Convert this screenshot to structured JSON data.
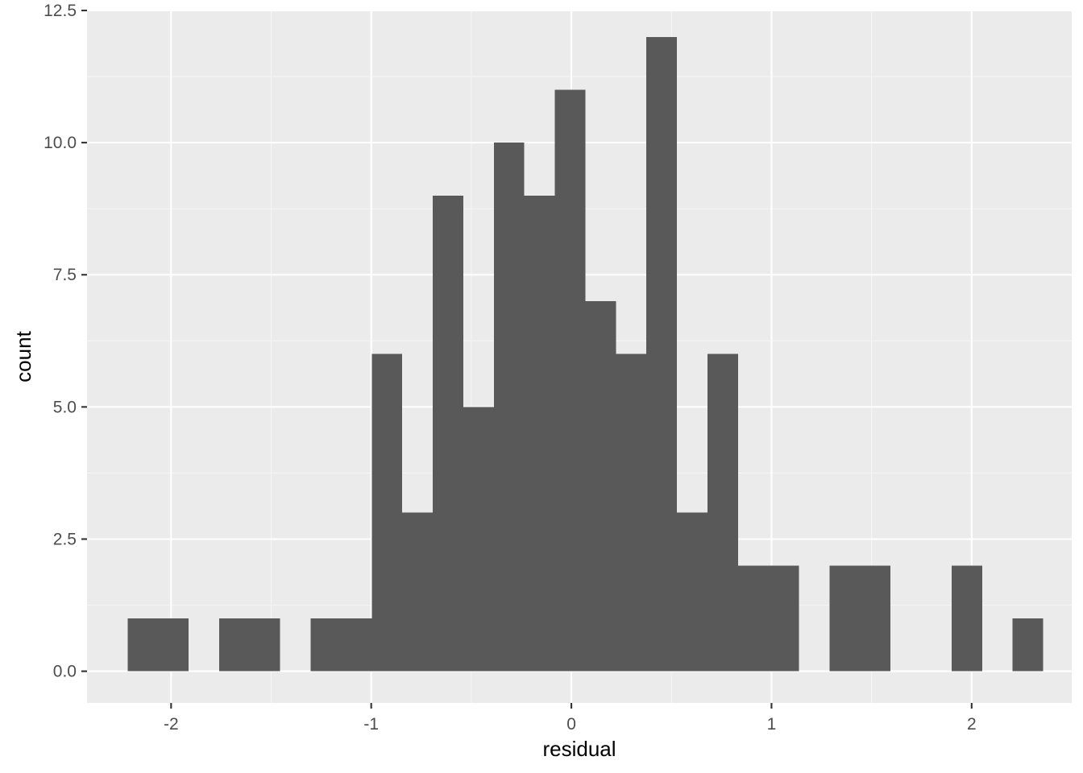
{
  "chart_data": {
    "type": "bar",
    "title": "",
    "xlabel": "residual",
    "ylabel": "count",
    "xlim": [
      -2.42,
      2.5
    ],
    "ylim": [
      -0.6,
      12.5
    ],
    "x_ticks": [
      {
        "value": -2,
        "label": "-2"
      },
      {
        "value": -1,
        "label": "-1"
      },
      {
        "value": 0,
        "label": "0"
      },
      {
        "value": 1,
        "label": "1"
      },
      {
        "value": 2,
        "label": "2"
      }
    ],
    "y_ticks": [
      {
        "value": 0,
        "label": "0.0"
      },
      {
        "value": 2.5,
        "label": "2.5"
      },
      {
        "value": 5,
        "label": "5.0"
      },
      {
        "value": 7.5,
        "label": "7.5"
      },
      {
        "value": 10,
        "label": "10.0"
      },
      {
        "value": 12.5,
        "label": "12.5"
      }
    ],
    "bin_width": 0.1525,
    "bins": [
      {
        "x_start": -2.2175,
        "x_end": -2.065,
        "count": 1
      },
      {
        "x_start": -2.065,
        "x_end": -1.9125,
        "count": 1
      },
      {
        "x_start": -1.9125,
        "x_end": -1.76,
        "count": 0
      },
      {
        "x_start": -1.76,
        "x_end": -1.6075,
        "count": 1
      },
      {
        "x_start": -1.6075,
        "x_end": -1.455,
        "count": 1
      },
      {
        "x_start": -1.455,
        "x_end": -1.3025,
        "count": 0
      },
      {
        "x_start": -1.3025,
        "x_end": -1.15,
        "count": 1
      },
      {
        "x_start": -1.15,
        "x_end": -0.9975,
        "count": 1
      },
      {
        "x_start": -0.9975,
        "x_end": -0.845,
        "count": 6
      },
      {
        "x_start": -0.845,
        "x_end": -0.6925,
        "count": 3
      },
      {
        "x_start": -0.6925,
        "x_end": -0.54,
        "count": 9
      },
      {
        "x_start": -0.54,
        "x_end": -0.3875,
        "count": 5
      },
      {
        "x_start": -0.3875,
        "x_end": -0.235,
        "count": 10
      },
      {
        "x_start": -0.235,
        "x_end": -0.0825,
        "count": 9
      },
      {
        "x_start": -0.0825,
        "x_end": 0.07,
        "count": 11
      },
      {
        "x_start": 0.07,
        "x_end": 0.2225,
        "count": 7
      },
      {
        "x_start": 0.2225,
        "x_end": 0.375,
        "count": 6
      },
      {
        "x_start": 0.375,
        "x_end": 0.5275,
        "count": 12
      },
      {
        "x_start": 0.5275,
        "x_end": 0.68,
        "count": 3
      },
      {
        "x_start": 0.68,
        "x_end": 0.8325,
        "count": 6
      },
      {
        "x_start": 0.8325,
        "x_end": 0.985,
        "count": 2
      },
      {
        "x_start": 0.985,
        "x_end": 1.1375,
        "count": 2
      },
      {
        "x_start": 1.1375,
        "x_end": 1.29,
        "count": 0
      },
      {
        "x_start": 1.29,
        "x_end": 1.4425,
        "count": 2
      },
      {
        "x_start": 1.4425,
        "x_end": 1.595,
        "count": 2
      },
      {
        "x_start": 1.595,
        "x_end": 1.7475,
        "count": 0
      },
      {
        "x_start": 1.7475,
        "x_end": 1.9,
        "count": 0
      },
      {
        "x_start": 1.9,
        "x_end": 2.0525,
        "count": 2
      },
      {
        "x_start": 2.0525,
        "x_end": 2.205,
        "count": 0
      },
      {
        "x_start": 2.205,
        "x_end": 2.3575,
        "count": 1
      }
    ],
    "grid": true,
    "legend": "none",
    "colors": {
      "panel_background": "#ebebeb",
      "grid_major": "#ffffff",
      "grid_minor": "#f5f5f5",
      "bar_fill": "#595959",
      "tick_text": "#4d4d4d",
      "tick_mark": "#333333",
      "axis_title": "#000000"
    }
  }
}
